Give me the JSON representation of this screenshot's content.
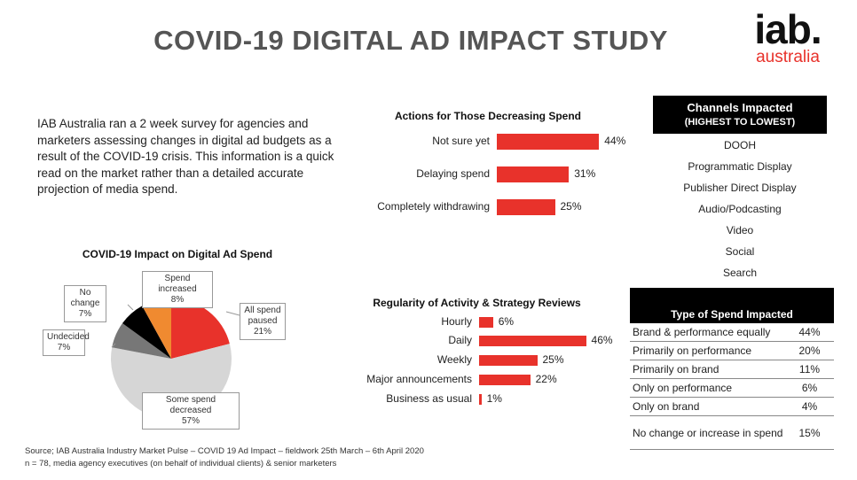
{
  "header": {
    "title": "COVID-19 DIGITAL AD IMPACT STUDY",
    "logo_text": "iab.",
    "logo_sub": "australia"
  },
  "intro": "IAB Australia ran a 2 week survey for agencies and marketers assessing changes in digital ad budgets as a result of the COVID-19 crisis. This information is a quick read on the market rather than a detailed accurate projection of media spend.",
  "colors": {
    "accent": "#e8322b",
    "orange": "#f08a30",
    "light_grey": "#d6d6d6",
    "grey": "#777777",
    "black": "#000000"
  },
  "chart_data": [
    {
      "type": "pie",
      "title": "COVID-19 Impact on Digital Ad Spend",
      "slices": [
        {
          "label": "All spend paused",
          "value": 21,
          "display": "21%",
          "color": "#e8322b"
        },
        {
          "label": "Some spend decreased",
          "value": 57,
          "display": "57%",
          "color": "#d6d6d6"
        },
        {
          "label": "Undecided",
          "value": 7,
          "display": "7%",
          "color": "#777777"
        },
        {
          "label": "No change",
          "value": 7,
          "display": "7%",
          "color": "#000000"
        },
        {
          "label": "Spend increased",
          "value": 8,
          "display": "8%",
          "color": "#f08a30"
        }
      ]
    },
    {
      "type": "bar",
      "orientation": "horizontal",
      "title": "Actions for Those Decreasing Spend",
      "categories": [
        "Not sure yet",
        "Delaying spend",
        "Completely withdrawing"
      ],
      "values": [
        44,
        31,
        25
      ],
      "labels": [
        "44%",
        "31%",
        "25%"
      ]
    },
    {
      "type": "bar",
      "orientation": "horizontal",
      "title": "Regularity of Activity & Strategy Reviews",
      "categories": [
        "Hourly",
        "Daily",
        "Weekly",
        "Major announcements",
        "Business as usual"
      ],
      "values": [
        6,
        46,
        25,
        22,
        1
      ],
      "labels": [
        "6%",
        "46%",
        "25%",
        "22%",
        "1%"
      ]
    },
    {
      "type": "table",
      "title": "Type of Spend Impacted",
      "rows": [
        [
          "Brand & performance equally",
          "44%"
        ],
        [
          "Primarily on performance",
          "20%"
        ],
        [
          "Primarily on brand",
          "11%"
        ],
        [
          "Only on performance",
          "6%"
        ],
        [
          "Only on brand",
          "4%"
        ],
        [
          "No change or increase in spend",
          "15%"
        ]
      ]
    }
  ],
  "channels": {
    "title": "Channels Impacted",
    "subtitle": "(HIGHEST TO LOWEST)",
    "items": [
      "DOOH",
      "Programmatic Display",
      "Publisher Direct Display",
      "Audio/Podcasting",
      "Video",
      "Social",
      "Search"
    ]
  },
  "source": {
    "line1": "Source; IAB Australia Industry Market Pulse – COVID 19 Ad Impact – fieldwork 25th March – 6th April 2020",
    "line2": "n = 78, media agency executives (on behalf of individual clients) & senior marketers"
  }
}
